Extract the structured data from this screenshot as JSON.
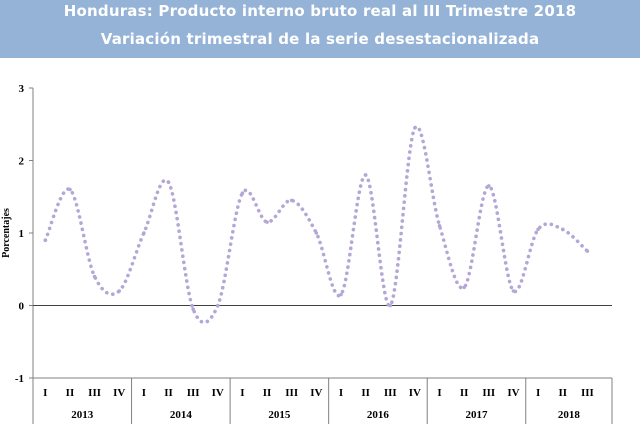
{
  "header": {
    "title": "Honduras: Producto interno bruto real al III Trimestre 2018",
    "subtitle": "Variación trimestral de la serie desestacionalizada"
  },
  "chart_data": {
    "type": "line",
    "title": "Honduras: Producto interno bruto real al III Trimestre 2018",
    "subtitle": "Variación trimestral de la serie desestacionalizada",
    "ylabel": "Porcentajes",
    "ylim": [
      -1,
      3
    ],
    "yticks": [
      -1,
      0,
      1,
      2,
      3
    ],
    "line_style": "dotted, smoothed",
    "series_color": "#b4a7d6",
    "grid": false,
    "quarter_labels": [
      "I",
      "II",
      "III",
      "IV",
      "I",
      "II",
      "III",
      "IV",
      "I",
      "II",
      "III",
      "IV",
      "I",
      "II",
      "III",
      "IV",
      "I",
      "II",
      "III",
      "IV",
      "I",
      "II",
      "III"
    ],
    "years": [
      {
        "label": "2013",
        "quarters": 4
      },
      {
        "label": "2014",
        "quarters": 4
      },
      {
        "label": "2015",
        "quarters": 4
      },
      {
        "label": "2016",
        "quarters": 4
      },
      {
        "label": "2017",
        "quarters": 4
      },
      {
        "label": "2018",
        "quarters": 3
      }
    ],
    "series": [
      {
        "values": [
          0.9,
          1.6,
          0.4,
          0.2,
          1.0,
          1.7,
          -0.05,
          0.0,
          1.55,
          1.15,
          1.45,
          1.0,
          0.15,
          1.8,
          0.0,
          2.45,
          1.1,
          0.25,
          1.65,
          0.2,
          1.05,
          1.05,
          0.75
        ]
      }
    ]
  }
}
